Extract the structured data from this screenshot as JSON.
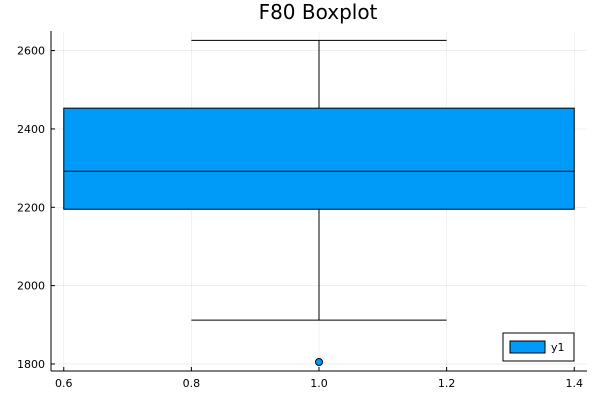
{
  "chart_data": {
    "type": "box",
    "title": "F80 Boxplot",
    "xlabel": "",
    "ylabel": "",
    "xlim": [
      0.58,
      1.42
    ],
    "ylim": [
      1782,
      2650
    ],
    "xticks": [
      0.6,
      0.8,
      1.0,
      1.2,
      1.4
    ],
    "xtick_labels": [
      "0.6",
      "0.8",
      "1.0",
      "1.2",
      "1.4"
    ],
    "yticks": [
      1800,
      2000,
      2200,
      2400,
      2600
    ],
    "ytick_labels": [
      "1800",
      "2000",
      "2200",
      "2400",
      "2600"
    ],
    "grid": true,
    "legend_position": "bottom-right",
    "series": [
      {
        "name": "y1",
        "color": "#009af9",
        "x": 1.0,
        "box_left": 0.6,
        "box_right": 1.4,
        "whisker_left": 0.8,
        "whisker_right": 1.2,
        "q1": 2195,
        "median": 2292,
        "q3": 2453,
        "whisker_low": 1912,
        "whisker_high": 2626,
        "outliers": [
          1805
        ]
      }
    ]
  }
}
